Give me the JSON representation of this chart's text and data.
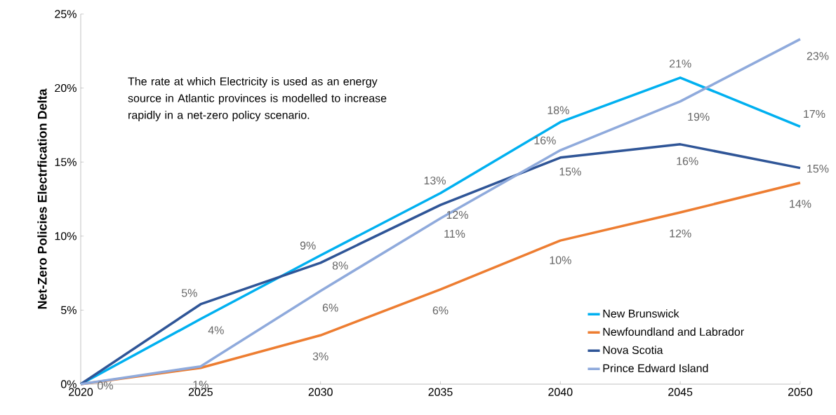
{
  "chart_data": {
    "type": "line",
    "ylabel": "Net-Zero Policies Electrfication Delta",
    "annotations": [
      "The rate at which Electricity is used as an energy source in Atlantic provinces is modelled to increase rapidly in a net-zero policy scenario."
    ],
    "x": [
      2020,
      2025,
      2030,
      2035,
      2040,
      2045,
      2050
    ],
    "xlim": [
      2020,
      2050
    ],
    "xticks": [
      2020,
      2025,
      2030,
      2035,
      2040,
      2045,
      2050
    ],
    "ylim": [
      0,
      25
    ],
    "yticks": [
      {
        "value": 0,
        "label": "0%"
      },
      {
        "value": 5,
        "label": "5%"
      },
      {
        "value": 10,
        "label": "10%"
      },
      {
        "value": 15,
        "label": "15%"
      },
      {
        "value": 20,
        "label": "20%"
      },
      {
        "value": 25,
        "label": "25%"
      }
    ],
    "grid": false,
    "legend": "bottom right",
    "marker": "none",
    "line_style": "solid",
    "series": [
      {
        "name": "New Brunswick",
        "color": "#00b0f0",
        "values": [
          0,
          4.4,
          8.7,
          12.9,
          17.7,
          20.7,
          17.4
        ],
        "value_labels": [
          null,
          "4%",
          "9%",
          "13%",
          "18%",
          "21%",
          "17%"
        ]
      },
      {
        "name": "Newfoundland and Labrador",
        "color": "#ed7d31",
        "values": [
          0,
          1.1,
          3.3,
          6.4,
          9.7,
          11.6,
          13.6
        ],
        "value_labels": [
          "0%",
          "1%",
          "3%",
          "6%",
          "10%",
          "12%",
          "14%"
        ]
      },
      {
        "name": "Nova Scotia",
        "color": "#2f5597",
        "values": [
          0,
          5.4,
          8.2,
          12.1,
          15.3,
          16.2,
          14.6
        ],
        "value_labels": [
          null,
          "5%",
          "8%",
          "12%",
          "15%",
          "16%",
          "15%"
        ]
      },
      {
        "name": "Prince Edward Island",
        "color": "#8faadc",
        "values": [
          0,
          1.2,
          6.3,
          11.2,
          15.8,
          19.1,
          23.3
        ],
        "value_labels": [
          null,
          null,
          "6%",
          "11%",
          "16%",
          "19%",
          "23%"
        ]
      }
    ]
  }
}
